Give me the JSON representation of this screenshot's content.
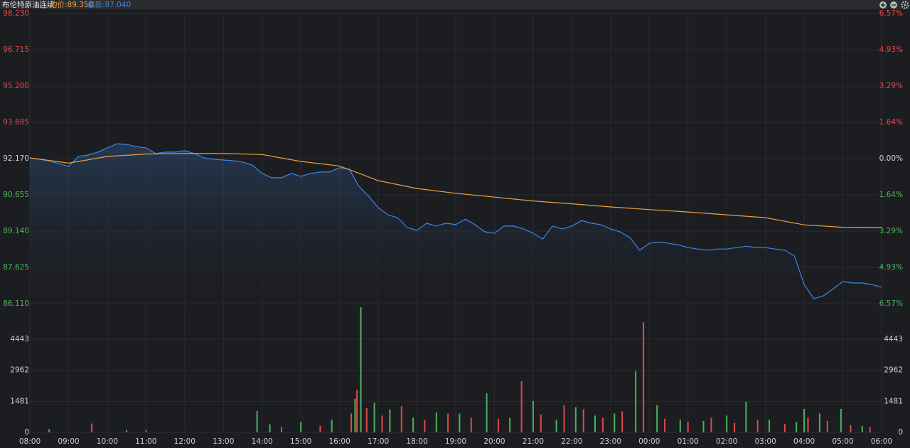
{
  "header": {
    "title": "布伦特原油连续",
    "avg_label": "均价:89.350",
    "latest_label": "最新:87.040"
  },
  "chart_data": [
    {
      "type": "line",
      "grid": true,
      "area": true,
      "xlim": [
        0,
        22
      ],
      "ylim": [
        86.11,
        98.23
      ],
      "yticks": [
        {
          "value": 98.23,
          "label": "98.230"
        },
        {
          "value": 96.715,
          "label": "96.715"
        },
        {
          "value": 95.2,
          "label": "95.200"
        },
        {
          "value": 93.685,
          "label": "93.685"
        },
        {
          "value": 92.17,
          "label": "92.170"
        },
        {
          "value": 90.655,
          "label": "90.655"
        },
        {
          "value": 89.14,
          "label": "89.140"
        },
        {
          "value": 87.625,
          "label": "87.625"
        },
        {
          "value": 86.11,
          "label": "86.110"
        }
      ],
      "y2lim": [
        -6.57,
        6.57
      ],
      "y2ticks": [
        {
          "value": 6.57,
          "label": "6.57%"
        },
        {
          "value": 4.93,
          "label": "4.93%"
        },
        {
          "value": 3.29,
          "label": "3.29%"
        },
        {
          "value": 1.64,
          "label": "1.64%"
        },
        {
          "value": 0,
          "label": "0.00%"
        },
        {
          "value": -1.64,
          "label": "1.64%"
        },
        {
          "value": -3.29,
          "label": "3.29%"
        },
        {
          "value": -4.93,
          "label": "4.93%"
        },
        {
          "value": -6.57,
          "label": "6.57%"
        }
      ],
      "series": [
        {
          "color": "#3d85e6",
          "x": [
            0,
            0.25,
            0.5,
            0.75,
            1,
            1.25,
            1.5,
            1.75,
            2,
            2.25,
            2.5,
            2.75,
            3,
            3.25,
            3.5,
            3.75,
            4,
            4.25,
            4.5,
            4.75,
            5,
            5.25,
            5.5,
            5.75,
            6,
            6.25,
            6.5,
            6.75,
            7,
            7.25,
            7.5,
            7.75,
            8,
            8.25,
            8.5,
            8.75,
            9,
            9.25,
            9.5,
            9.75,
            10,
            10.25,
            10.5,
            10.75,
            11,
            11.25,
            11.5,
            11.75,
            12,
            12.25,
            12.5,
            12.75,
            13,
            13.25,
            13.5,
            13.75,
            14,
            14.25,
            14.5,
            14.75,
            15,
            15.25,
            15.5,
            15.75,
            16,
            16.25,
            16.5,
            16.75,
            17,
            17.25,
            17.5,
            17.75,
            18,
            18.25,
            18.5,
            18.75,
            19,
            19.25,
            19.5,
            19.75,
            20,
            20.25,
            20.5,
            20.75,
            21,
            21.25,
            21.5,
            21.75,
            22
          ],
          "values": [
            92.2,
            92.14,
            92.08,
            91.96,
            91.84,
            92.26,
            92.32,
            92.44,
            92.62,
            92.79,
            92.76,
            92.67,
            92.62,
            92.38,
            92.44,
            92.44,
            92.5,
            92.38,
            92.2,
            92.14,
            92.11,
            92.08,
            92.02,
            91.9,
            91.55,
            91.37,
            91.37,
            91.55,
            91.43,
            91.55,
            91.61,
            91.61,
            91.79,
            91.73,
            91.01,
            90.6,
            90.12,
            89.82,
            89.7,
            89.29,
            89.17,
            89.47,
            89.35,
            89.47,
            89.41,
            89.64,
            89.41,
            89.11,
            89.05,
            89.35,
            89.35,
            89.23,
            89.05,
            88.81,
            89.35,
            89.23,
            89.35,
            89.58,
            89.47,
            89.41,
            89.23,
            89.11,
            88.87,
            88.34,
            88.63,
            88.69,
            88.63,
            88.57,
            88.45,
            88.39,
            88.34,
            88.39,
            88.39,
            88.45,
            88.51,
            88.45,
            88.45,
            88.39,
            88.34,
            88.1,
            86.91,
            86.32,
            86.44,
            86.73,
            87.03,
            86.97,
            86.97,
            86.91,
            86.79
          ]
        },
        {
          "color": "#e8a33d",
          "x": [
            0,
            1,
            2,
            3,
            4,
            5,
            6,
            7,
            8,
            9,
            10,
            11,
            12,
            13,
            14,
            15,
            16,
            17,
            18,
            19,
            20,
            21,
            22
          ],
          "values": [
            92.2,
            91.98,
            92.26,
            92.36,
            92.38,
            92.38,
            92.34,
            92.05,
            91.86,
            91.25,
            90.92,
            90.72,
            90.56,
            90.4,
            90.28,
            90.15,
            90.04,
            89.94,
            89.82,
            89.7,
            89.4,
            89.3,
            89.29
          ]
        }
      ]
    },
    {
      "type": "bar",
      "xlim": [
        0,
        22
      ],
      "xticks": [
        {
          "value": 0,
          "label": "08:00"
        },
        {
          "value": 1,
          "label": "09:00"
        },
        {
          "value": 2,
          "label": "10:00"
        },
        {
          "value": 3,
          "label": "11:00"
        },
        {
          "value": 4,
          "label": "12:00"
        },
        {
          "value": 5,
          "label": "13:00"
        },
        {
          "value": 6,
          "label": "14:00"
        },
        {
          "value": 7,
          "label": "15:00"
        },
        {
          "value": 8,
          "label": "16:00"
        },
        {
          "value": 9,
          "label": "17:00"
        },
        {
          "value": 10,
          "label": "18:00"
        },
        {
          "value": 11,
          "label": "19:00"
        },
        {
          "value": 12,
          "label": "20:00"
        },
        {
          "value": 13,
          "label": "21:00"
        },
        {
          "value": 14,
          "label": "22:00"
        },
        {
          "value": 15,
          "label": "23:00"
        },
        {
          "value": 16,
          "label": "00:00"
        },
        {
          "value": 17,
          "label": "01:00"
        },
        {
          "value": 18,
          "label": "02:00"
        },
        {
          "value": 19,
          "label": "03:00"
        },
        {
          "value": 20,
          "label": "04:00"
        },
        {
          "value": 21,
          "label": "05:00"
        },
        {
          "value": 22,
          "label": "06:00"
        }
      ],
      "ylim": [
        0,
        5970
      ],
      "yticks": [
        0,
        1481,
        2962,
        4443
      ],
      "series": [
        {
          "color": "#e0494a",
          "x": [
            1.6,
            3.0,
            6.5,
            7.5,
            8.3,
            8.45,
            8.7,
            9.1,
            9.6,
            10.2,
            10.8,
            11.4,
            12.1,
            12.7,
            13.2,
            13.8,
            14.3,
            14.8,
            15.3,
            15.85,
            16.4,
            17.0,
            17.6,
            18.2,
            18.8,
            19.5,
            20.1,
            20.6,
            21.2,
            21.7
          ],
          "values": [
            420,
            120,
            250,
            320,
            900,
            2030,
            1150,
            800,
            1250,
            600,
            900,
            700,
            650,
            2440,
            850,
            1300,
            1100,
            700,
            1000,
            5250,
            650,
            500,
            700,
            450,
            600,
            400,
            700,
            550,
            350,
            250
          ]
        },
        {
          "color": "#4cb35a",
          "x": [
            0.5,
            2.5,
            5.87,
            6.2,
            7.0,
            7.8,
            8.4,
            8.55,
            8.9,
            9.3,
            9.9,
            10.5,
            11.1,
            11.8,
            12.4,
            13.0,
            13.6,
            14.1,
            14.6,
            15.1,
            15.65,
            16.2,
            16.8,
            17.4,
            18.0,
            18.5,
            19.1,
            19.8,
            20.0,
            20.4,
            20.95,
            21.5
          ],
          "values": [
            150,
            100,
            1020,
            380,
            500,
            600,
            1600,
            5970,
            1400,
            1100,
            700,
            950,
            900,
            1860,
            700,
            1500,
            600,
            1200,
            800,
            900,
            2920,
            1300,
            600,
            550,
            800,
            1460,
            600,
            500,
            1120,
            900,
            1120,
            300
          ]
        }
      ]
    }
  ]
}
